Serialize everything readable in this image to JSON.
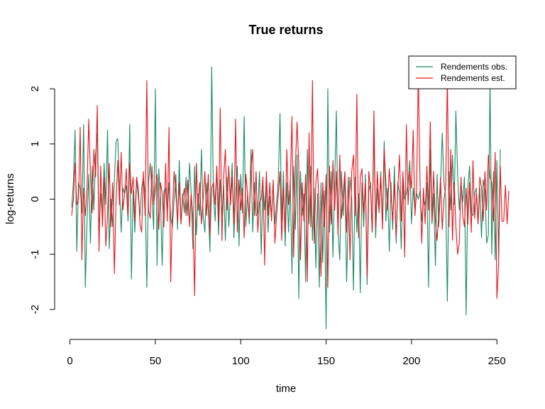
{
  "chart_data": {
    "type": "line",
    "title": "True returns",
    "xlabel": "time",
    "ylabel": "log-returns",
    "xlim": [
      1,
      252
    ],
    "ylim": [
      -2.35,
      2.4
    ],
    "x_ticks": [
      0,
      50,
      100,
      150,
      200,
      250
    ],
    "y_ticks": [
      -2,
      -1,
      0,
      1,
      2
    ],
    "grid": false,
    "legend_position": "top-right",
    "series": [
      {
        "name": "Rendements obs.",
        "color": "#1a8a64",
        "values": [
          -0.15,
          0.3,
          1.25,
          -0.95,
          0.3,
          0.2,
          -0.25,
          1.35,
          -1.6,
          -0.4,
          0.45,
          -0.8,
          0.6,
          -0.2,
          0.8,
          1.2,
          -0.6,
          0.1,
          -0.3,
          0.65,
          -0.1,
          1.25,
          -0.9,
          0.0,
          -0.5,
          0.35,
          1.05,
          1.1,
          0.2,
          -0.6,
          0.2,
          0.1,
          0.25,
          -0.4,
          1.35,
          -1.45,
          0.15,
          -0.6,
          0.35,
          0.05,
          -0.3,
          0.2,
          0.4,
          0.1,
          -1.6,
          0.3,
          0.65,
          0.1,
          -0.55,
          2.0,
          -1.2,
          0.55,
          0.0,
          -1.2,
          0.15,
          0.2,
          -0.25,
          0.3,
          -0.35,
          -0.5,
          0.0,
          0.45,
          -0.55,
          0.7,
          -0.45,
          0.1,
          -0.25,
          0.4,
          -0.3,
          0.65,
          0.1,
          -0.9,
          0.6,
          -0.65,
          0.1,
          -0.3,
          0.9,
          -0.3,
          -0.6,
          0.3,
          -0.2,
          -0.95,
          2.4,
          0.1,
          -0.4,
          0.6,
          -0.65,
          0.35,
          -0.3,
          0.25,
          -0.75,
          0.4,
          -0.5,
          0.1,
          0.65,
          -0.7,
          0.1,
          0.6,
          -0.85,
          0.45,
          -0.25,
          1.5,
          -0.5,
          0.1,
          -0.45,
          0.9,
          -0.6,
          0.3,
          -0.3,
          -0.25,
          0.5,
          -1.0,
          0.25,
          -0.2,
          0.4,
          -0.6,
          0.05,
          -0.35,
          0.3,
          -0.45,
          -0.05,
          0.35,
          1.55,
          -0.4,
          0.5,
          -0.85,
          0.3,
          -0.6,
          0.35,
          -1.35,
          0.6,
          -0.55,
          0.8,
          -1.8,
          0.5,
          -0.3,
          0.1,
          -1.5,
          0.9,
          -0.45,
          0.6,
          -0.75,
          0.2,
          -1.25,
          0.1,
          -1.6,
          0.3,
          -1.15,
          0.15,
          -2.35,
          2.0,
          -0.6,
          0.5,
          -1.05,
          0.3,
          1.6,
          -0.6,
          -1.1,
          0.5,
          -0.3,
          0.45,
          -1.5,
          -0.3,
          0.4,
          0.0,
          -1.65,
          0.4,
          -0.6,
          0.1,
          -1.7,
          0.3,
          -0.5,
          0.45,
          -1.55,
          0.15,
          0.3,
          -0.6,
          1.3,
          -0.7,
          0.2,
          -0.25,
          0.5,
          -0.45,
          1.05,
          -0.4,
          0.2,
          -0.95,
          0.3,
          -0.55,
          0.6,
          -0.8,
          0.3,
          0.1,
          -0.9,
          0.45,
          0.0,
          0.1,
          0.3,
          0.7,
          -0.45,
          0.2,
          -0.2,
          0.1,
          0.0,
          0.15,
          -0.4,
          0.0,
          -0.1,
          0.3,
          -1.6,
          0.9,
          -0.45,
          0.1,
          -1.2,
          0.45,
          -0.5,
          0.25,
          1.2,
          0.3,
          0.05,
          -1.85,
          0.5,
          -0.2,
          0.8,
          -0.1,
          1.6,
          0.45,
          -0.2,
          0.3,
          -0.05,
          0.4,
          -2.1,
          0.2,
          0.6,
          -0.25,
          -0.3,
          0.1,
          0.2,
          -0.45,
          0.2,
          -0.7,
          0.35,
          0.15,
          -0.8,
          -0.65,
          2.15,
          -1.0,
          0.5,
          -1.1,
          0.7,
          -1.05,
          0.9
        ]
      },
      {
        "name": "Rendements est.",
        "color": "#e8141d",
        "values": [
          -0.3,
          0.0,
          0.65,
          -0.1,
          0.0,
          1.3,
          -1.1,
          0.2,
          -0.3,
          0.2,
          1.45,
          0.45,
          -0.25,
          0.9,
          0.4,
          1.7,
          -0.95,
          0.6,
          -0.5,
          0.4,
          -0.85,
          -0.3,
          0.65,
          -0.5,
          0.3,
          -1.35,
          0.0,
          0.7,
          -0.1,
          0.85,
          -0.2,
          0.1,
          0.55,
          -0.3,
          0.65,
          0.1,
          0.4,
          -0.4,
          0.4,
          0.2,
          -0.45,
          -0.6,
          0.5,
          -0.3,
          2.15,
          -0.2,
          -0.35,
          0.6,
          -0.1,
          0.2,
          0.45,
          -0.55,
          0.3,
          0.1,
          -0.5,
          0.65,
          -0.4,
          1.3,
          -1.5,
          -0.2,
          0.5,
          0.1,
          -0.4,
          0.3,
          -0.45,
          0.0,
          0.2,
          -0.3,
          0.35,
          -0.5,
          0.1,
          -0.35,
          -1.75,
          0.65,
          -0.2,
          0.3,
          -0.45,
          0.0,
          0.5,
          -0.3,
          0.45,
          -0.65,
          0.2,
          0.3,
          -0.1,
          0.6,
          -0.4,
          1.65,
          -0.75,
          0.4,
          0.9,
          -0.2,
          0.6,
          -0.1,
          0.4,
          -0.45,
          1.45,
          -0.6,
          0.35,
          -0.2,
          0.2,
          -0.7,
          0.45,
          0.1,
          -0.35,
          0.55,
          0.9,
          -0.3,
          0.5,
          -0.6,
          -0.05,
          0.0,
          0.4,
          -1.2,
          0.5,
          -0.3,
          0.3,
          -0.4,
          0.35,
          -0.8,
          -0.3,
          0.1,
          0.5,
          -0.75,
          0.2,
          -0.6,
          0.9,
          -0.1,
          0.25,
          1.5,
          -1.05,
          0.6,
          1.4,
          0.6,
          -1.1,
          0.3,
          -0.4,
          0.45,
          -1.5,
          1.2,
          -0.5,
          2.15,
          -0.8,
          0.3,
          0.55,
          -0.25,
          -1.4,
          0.3,
          -0.5,
          0.45,
          -1.6,
          0.6,
          -0.45,
          0.7,
          -0.2,
          0.5,
          -0.65,
          0.8,
          -0.35,
          0.1,
          0.5,
          -0.6,
          0.4,
          -1.1,
          0.5,
          0.8,
          -0.3,
          1.9,
          -0.7,
          0.4,
          0.55,
          -0.25,
          0.3,
          -1.4,
          0.5,
          0.2,
          -0.6,
          1.6,
          -0.5,
          0.5,
          -0.2,
          0.4,
          -0.55,
          0.9,
          0.3,
          -0.2,
          0.55,
          0.1,
          -0.4,
          0.3,
          -0.7,
          0.2,
          0.8,
          -0.4,
          0.5,
          -1.05,
          1.35,
          -0.1,
          0.5,
          0.2,
          1.25,
          -0.3,
          0.2,
          2.3,
          0.3,
          -0.8,
          0.2,
          -0.45,
          0.6,
          -0.2,
          1.4,
          -0.4,
          0.5,
          -0.4,
          -0.75,
          -0.25,
          0.4,
          -0.55,
          0.0,
          0.2,
          2.2,
          -0.5,
          0.9,
          -0.75,
          0.3,
          -0.5,
          -1.0,
          -0.8,
          0.4,
          -0.3,
          -0.5,
          0.2,
          -0.45,
          0.3,
          -0.6,
          0.7,
          -0.35,
          0.1,
          -0.45,
          0.4,
          0.2,
          -0.4,
          0.5,
          -0.2,
          0.8,
          0.4,
          0.3,
          -0.4,
          0.85,
          -1.8,
          -1.2,
          0.6,
          -0.4,
          -0.4,
          0.25,
          -0.45,
          0.15
        ]
      }
    ]
  }
}
